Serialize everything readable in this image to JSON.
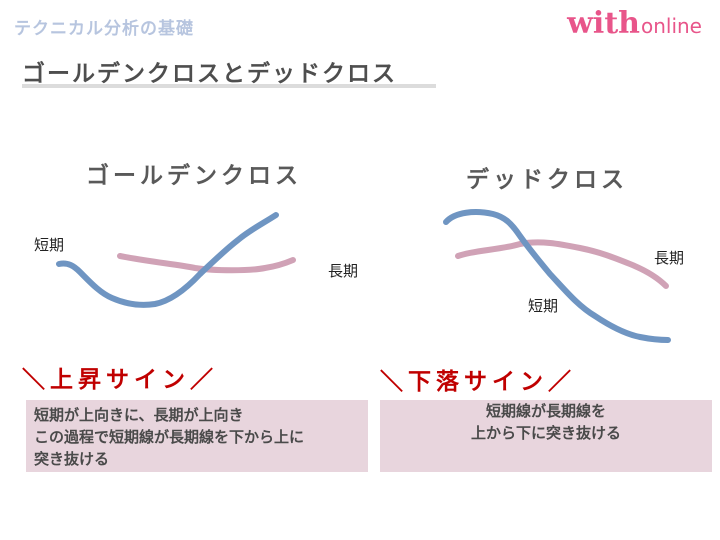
{
  "header": {
    "section_label": "テクニカル分析の基礎"
  },
  "brand": {
    "word": "with",
    "suffix": "online"
  },
  "slide_title": "ゴールデンクロスとデッドクロス",
  "golden_cross": {
    "heading": "ゴールデンクロス",
    "short_label": "短期",
    "long_label": "長期",
    "sign_label": "＼上昇サイン／",
    "description_lines": [
      "短期が上向きに、長期が上向き",
      "この過程で短期線が長期線を下から上に",
      "突き抜ける"
    ]
  },
  "dead_cross": {
    "heading": "デッドクロス",
    "short_label": "短期",
    "long_label": "長期",
    "sign_label": "＼下落サイン／",
    "description_lines": [
      "短期線が長期線を",
      "上から下に突き抜ける"
    ]
  },
  "colors": {
    "short_line": "#6f95c2",
    "long_line": "#d0a2b6",
    "sign_text": "#c00000",
    "description_bg": "#e8d5dd",
    "header_label": "#b7c5df",
    "brand": "#e8558a"
  }
}
